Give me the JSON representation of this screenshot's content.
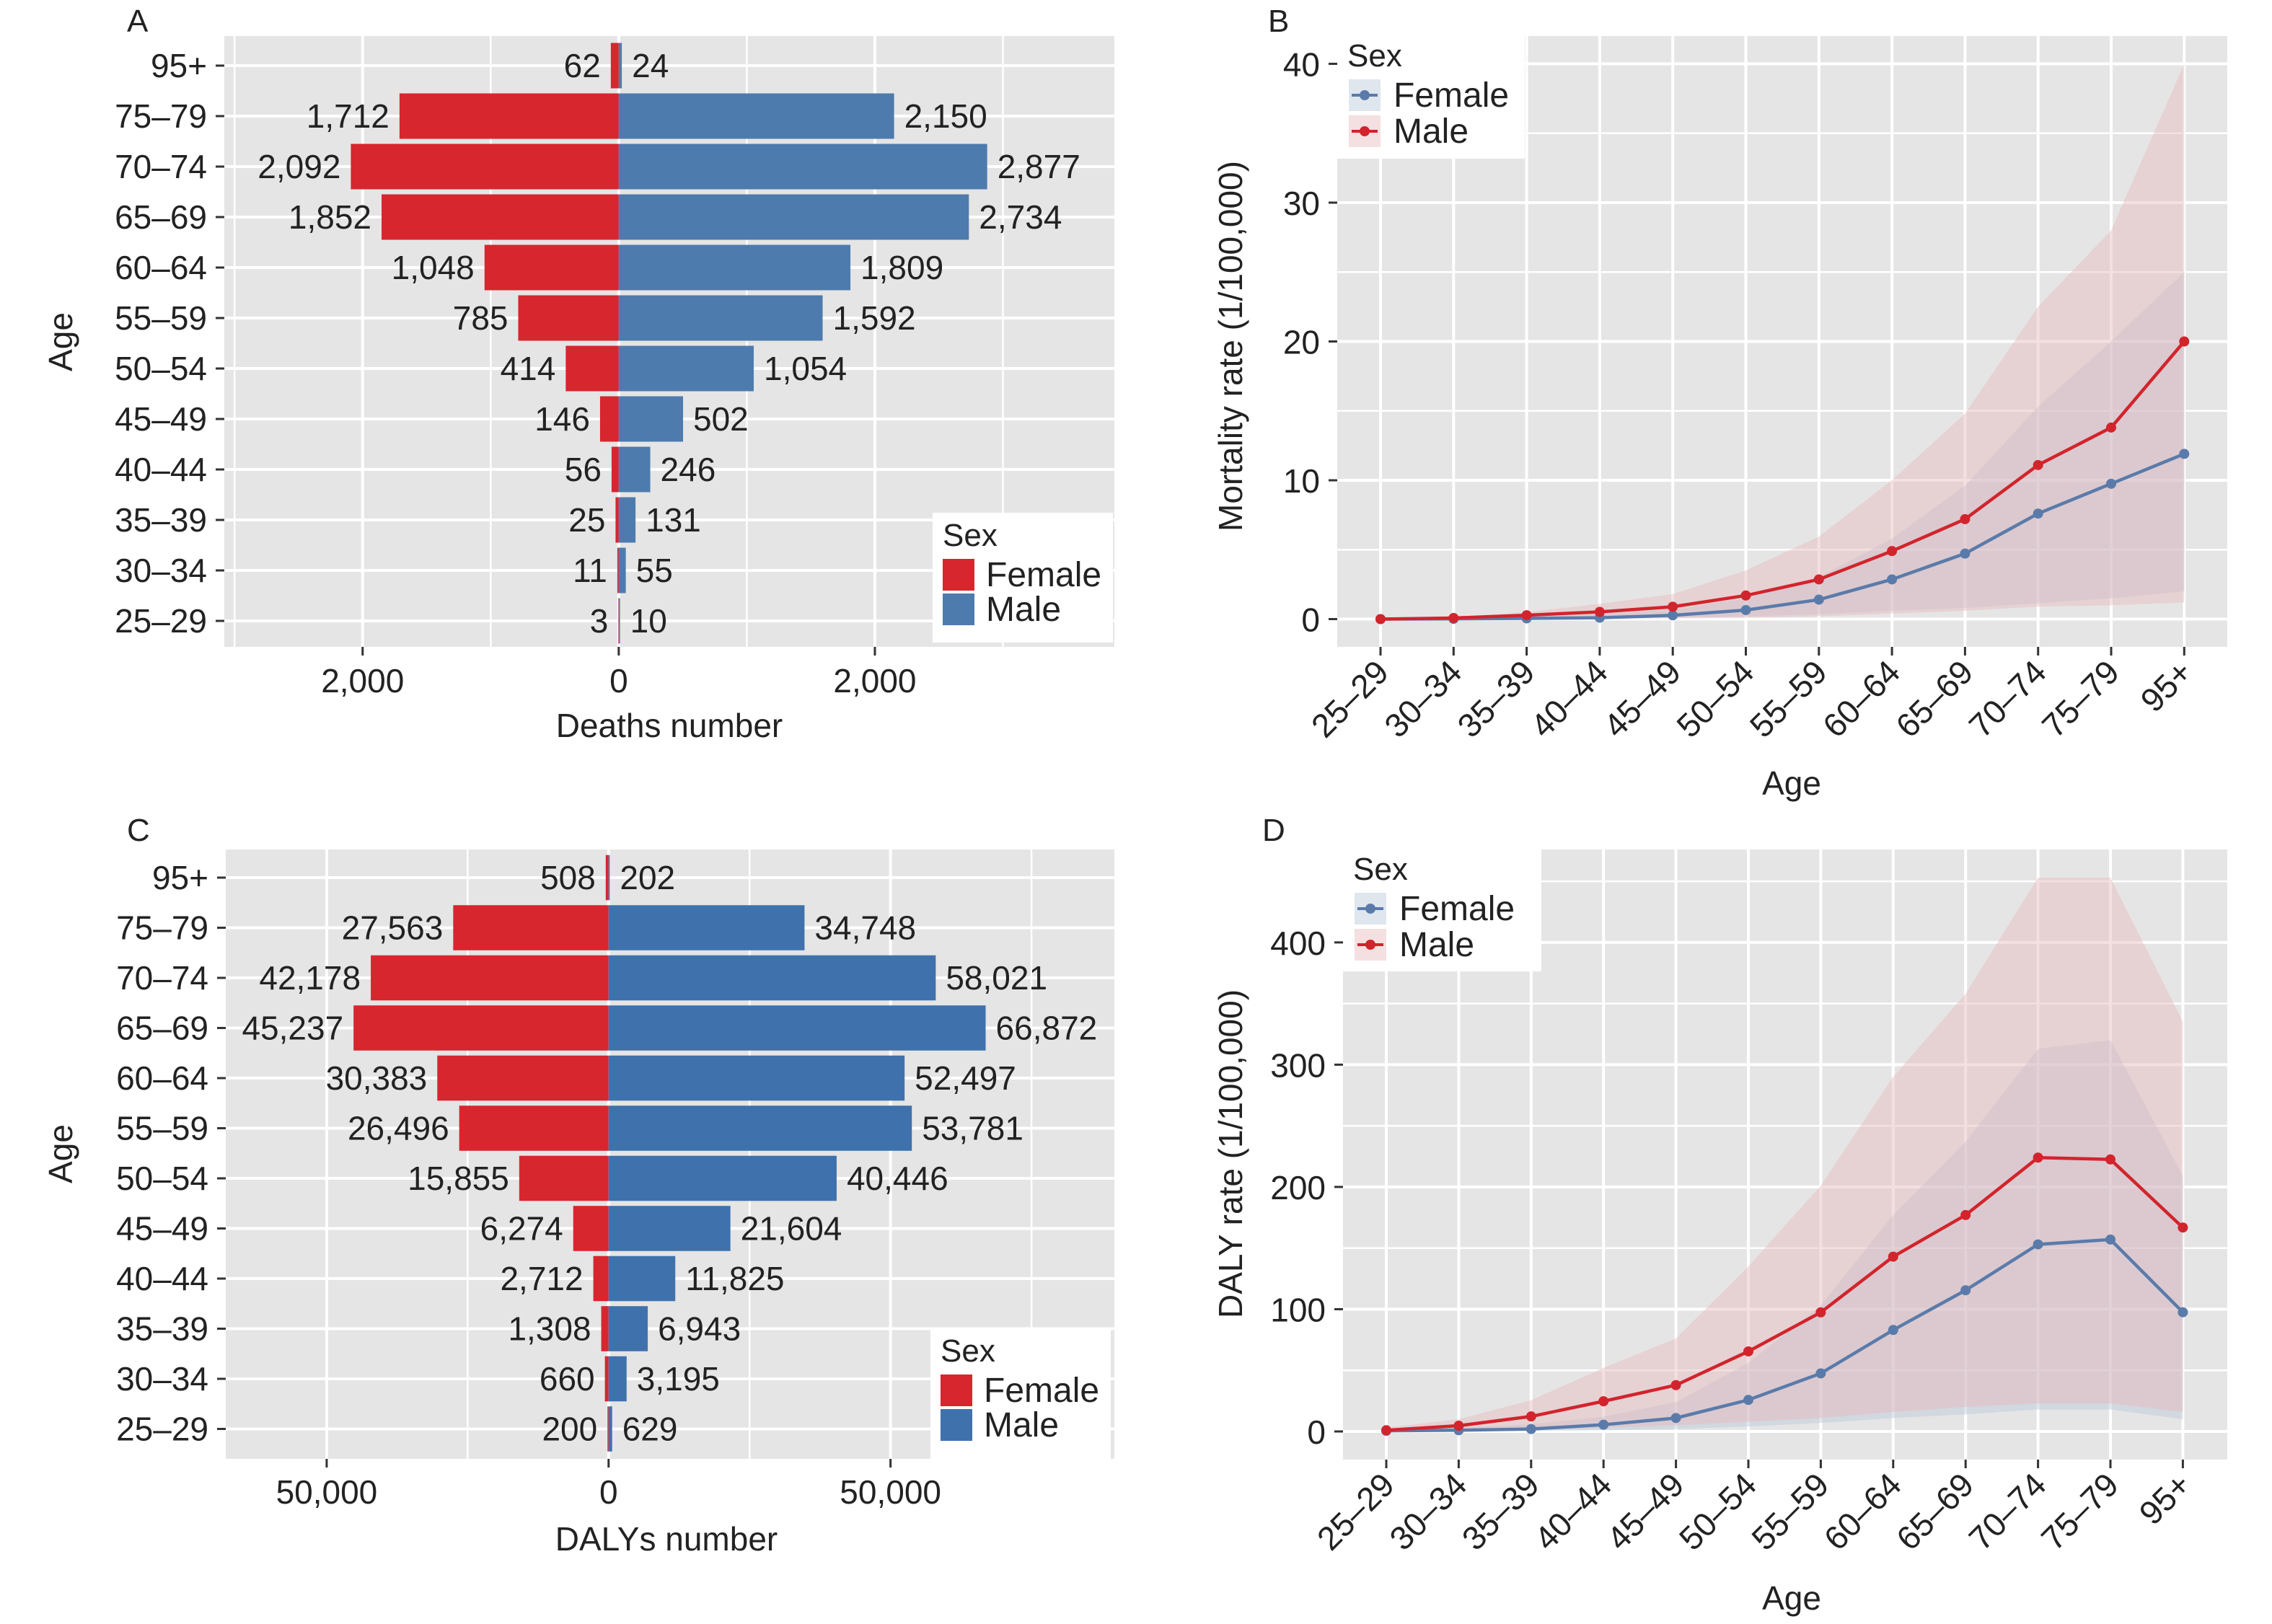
{
  "colors": {
    "female": "#D7262E",
    "male_bar_deaths": "#4E7BAD",
    "male_bar_dalys": "#3F72AC",
    "female_line": "#5A7BAA",
    "male_line": "#D2242C",
    "female_ribbon": "#B9C7D6",
    "male_ribbon": "#E6B8BC",
    "panel_bg": "#E5E5E5",
    "grid": "#FFFFFF"
  },
  "chart_data": [
    {
      "id": "A",
      "panel_letter": "A",
      "type": "bar",
      "orientation": "horizontal-diverging",
      "title": "",
      "xlabel": "Deaths number",
      "ylabel": "Age",
      "categories": [
        "95+",
        "75–79",
        "70–74",
        "65–69",
        "60–64",
        "55–59",
        "50–54",
        "45–49",
        "40–44",
        "35–39",
        "30–34",
        "25–29"
      ],
      "series": [
        {
          "name": "Female",
          "side": "left",
          "values": [
            62,
            1712,
            2092,
            1852,
            1048,
            785,
            414,
            146,
            56,
            25,
            11,
            3
          ],
          "labels": [
            "62",
            "1,712",
            "2,092",
            "1,852",
            "1,048",
            "785",
            "414",
            "146",
            "56",
            "25",
            "11",
            "3"
          ]
        },
        {
          "name": "Male",
          "side": "right",
          "values": [
            24,
            2150,
            2877,
            2734,
            1809,
            1592,
            1054,
            502,
            246,
            131,
            55,
            10
          ],
          "labels": [
            "24",
            "2,150",
            "2,877",
            "2,734",
            "1,809",
            "1,592",
            "1,054",
            "502",
            "246",
            "131",
            "55",
            "10"
          ]
        }
      ],
      "xlim": [
        -3080,
        3870
      ],
      "xticks": [
        -2000,
        0,
        2000
      ],
      "xtick_labels": [
        "2,000",
        "0",
        "2,000"
      ],
      "grid": true,
      "legend": {
        "title": "Sex",
        "placement": "bottom-right",
        "entries": [
          "Female",
          "Male"
        ]
      }
    },
    {
      "id": "B",
      "panel_letter": "B",
      "type": "line",
      "title": "",
      "xlabel": "Age",
      "ylabel": "Mortality rate (1/100,000)",
      "categories": [
        "25–29",
        "30–34",
        "35–39",
        "40–44",
        "45–49",
        "50–54",
        "55–59",
        "60–64",
        "65–69",
        "70–74",
        "75–79",
        "95+"
      ],
      "series": [
        {
          "name": "Female",
          "values": [
            0.0,
            0.02,
            0.05,
            0.1,
            0.27,
            0.65,
            1.4,
            2.86,
            4.72,
            7.6,
            9.75,
            11.9
          ],
          "lower": [
            0.0,
            0.0,
            0.02,
            0.05,
            0.1,
            0.2,
            0.35,
            0.6,
            0.8,
            1.15,
            1.5,
            2.0
          ],
          "upper": [
            0.02,
            0.06,
            0.15,
            0.35,
            0.7,
            1.5,
            3.0,
            5.8,
            9.6,
            15.3,
            20.0,
            25.0
          ]
        },
        {
          "name": "Male",
          "values": [
            0.0,
            0.08,
            0.28,
            0.52,
            0.89,
            1.7,
            2.86,
            4.9,
            7.2,
            11.1,
            13.8,
            20.0
          ],
          "lower": [
            0.0,
            0.0,
            0.01,
            0.03,
            0.05,
            0.1,
            0.2,
            0.4,
            0.6,
            0.9,
            1.0,
            1.2
          ],
          "upper": [
            0.03,
            0.15,
            0.5,
            1.1,
            1.8,
            3.5,
            5.95,
            10.0,
            14.8,
            22.5,
            28.0,
            40.0
          ]
        }
      ],
      "ylim": [
        -2.0,
        42.0
      ],
      "yticks": [
        0,
        10,
        20,
        30,
        40
      ],
      "ytick_labels": [
        "0",
        "10",
        "20",
        "30",
        "40"
      ],
      "grid": true,
      "legend": {
        "title": "Sex",
        "placement": "top-left",
        "entries": [
          "Female",
          "Male"
        ]
      }
    },
    {
      "id": "C",
      "panel_letter": "C",
      "type": "bar",
      "orientation": "horizontal-diverging",
      "title": "",
      "xlabel": "DALYs number",
      "ylabel": "Age",
      "categories": [
        "95+",
        "75–79",
        "70–74",
        "65–69",
        "60–64",
        "55–59",
        "50–54",
        "45–49",
        "40–44",
        "35–39",
        "30–34",
        "25–29"
      ],
      "series": [
        {
          "name": "Female",
          "side": "left",
          "values": [
            508,
            27563,
            42178,
            45237,
            30383,
            26496,
            15855,
            6274,
            2712,
            1308,
            660,
            200
          ],
          "labels": [
            "508",
            "27,563",
            "42,178",
            "45,237",
            "30,383",
            "26,496",
            "15,855",
            "6,274",
            "2,712",
            "1,308",
            "660",
            "200"
          ]
        },
        {
          "name": "Male",
          "side": "right",
          "values": [
            202,
            34748,
            58021,
            66872,
            52497,
            53781,
            40446,
            21604,
            11825,
            6943,
            3195,
            629
          ],
          "labels": [
            "202",
            "34,748",
            "58,021",
            "66,872",
            "52,497",
            "53,781",
            "40,446",
            "21,604",
            "11,825",
            "6,943",
            "3,195",
            "629"
          ]
        }
      ],
      "xlim": [
        -67900,
        89700
      ],
      "xticks": [
        -50000,
        0,
        50000
      ],
      "xtick_labels": [
        "50,000",
        "0",
        "50,000"
      ],
      "grid": true,
      "legend": {
        "title": "Sex",
        "placement": "bottom-right",
        "entries": [
          "Female",
          "Male"
        ]
      }
    },
    {
      "id": "D",
      "panel_letter": "D",
      "type": "line",
      "title": "",
      "xlabel": "Age",
      "ylabel": "DALY rate (1/100,000)",
      "categories": [
        "25–29",
        "30–34",
        "35–39",
        "40–44",
        "45–49",
        "50–54",
        "55–59",
        "60–64",
        "65–69",
        "70–74",
        "75–79",
        "95+"
      ],
      "series": [
        {
          "name": "Female",
          "values": [
            0.5,
            1.0,
            2.0,
            5.5,
            11.0,
            25.8,
            47.5,
            83.0,
            115.5,
            153.0,
            157.0,
            97.5
          ],
          "lower": [
            0.0,
            0.2,
            0.5,
            1.0,
            2.0,
            4.0,
            7.0,
            11.0,
            14.0,
            18.0,
            18.0,
            10.0
          ],
          "upper": [
            1.5,
            3.0,
            6.0,
            12.0,
            24.0,
            56.0,
            103.0,
            177.0,
            237.0,
            313.0,
            320.0,
            209.0
          ]
        },
        {
          "name": "Male",
          "values": [
            1.0,
            4.7,
            12.3,
            24.7,
            37.9,
            65.5,
            97.4,
            143.0,
            177.0,
            224.0,
            222.5,
            166.8
          ],
          "lower": [
            0.0,
            0.5,
            1.5,
            3.0,
            5.0,
            8.0,
            11.0,
            16.0,
            20.0,
            23.0,
            23.0,
            16.0
          ],
          "upper": [
            3.0,
            10.0,
            25.5,
            52.0,
            76.0,
            135.0,
            201.0,
            290.0,
            358.0,
            453.0,
            453.0,
            335.0
          ]
        }
      ],
      "ylim": [
        -23,
        476
      ],
      "yticks": [
        0,
        100,
        200,
        300,
        400
      ],
      "ytick_labels": [
        "0",
        "100",
        "200",
        "300",
        "400"
      ],
      "grid": true,
      "legend": {
        "title": "Sex",
        "placement": "top-left",
        "entries": [
          "Female",
          "Male"
        ]
      }
    }
  ]
}
